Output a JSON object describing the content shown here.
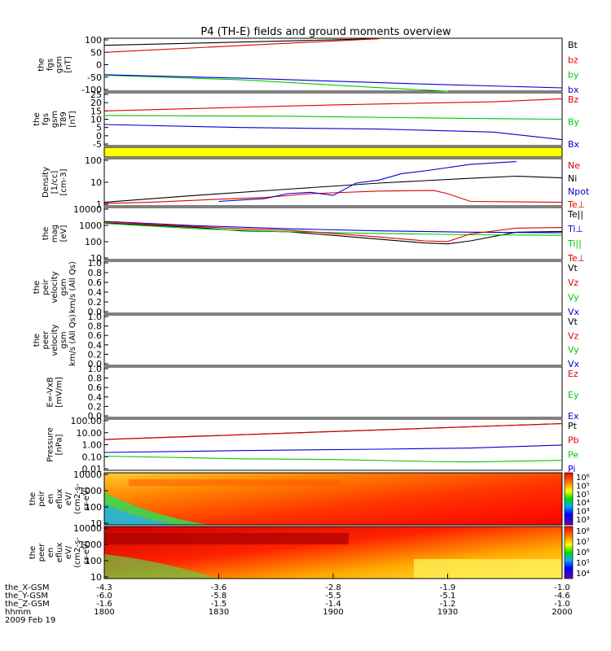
{
  "title": "P4 (TH-E) fields and ground moments overview",
  "time_axis": {
    "rows": [
      {
        "label": "the_X-GSM",
        "values": [
          "-4.3",
          "-3.6",
          "-2.8",
          "-1.9",
          "-1.0"
        ]
      },
      {
        "label": "the_Y-GSM",
        "values": [
          "-6.0",
          "-5.8",
          "-5.5",
          "-5.1",
          "-4.6"
        ]
      },
      {
        "label": "the_Z-GSM",
        "values": [
          "-1.6",
          "-1.5",
          "-1.4",
          "-1.2",
          "-1.0"
        ]
      },
      {
        "label": "hhmm",
        "values": [
          "1800",
          "1830",
          "1900",
          "1930",
          "2000"
        ]
      }
    ],
    "date": "2009 Feb 19"
  },
  "colors": {
    "black": "#000000",
    "red": "#e00000",
    "green": "#00c800",
    "blue": "#0000d0",
    "yellow": "#ffff00"
  },
  "chart_data": [
    {
      "type": "line",
      "id": "fgs",
      "ylabel": [
        "the",
        "fgs",
        "gsm",
        "[nT]"
      ],
      "yticks": [
        "100",
        "50",
        "0",
        "-50",
        "-100"
      ],
      "ylim": [
        -110,
        115
      ],
      "x": [
        0,
        1
      ],
      "series": [
        {
          "name": "Bt",
          "color": "#000000",
          "x": [
            0,
            0.6
          ],
          "y": [
            85,
            113
          ]
        },
        {
          "name": "bz",
          "color": "#e00000",
          "x": [
            0,
            0.6
          ],
          "y": [
            55,
            113
          ]
        },
        {
          "name": "by",
          "color": "#00c800",
          "x": [
            0,
            0.3,
            0.6,
            0.75
          ],
          "y": [
            -42,
            -62,
            -95,
            -112
          ]
        },
        {
          "name": "bx",
          "color": "#0000d0",
          "x": [
            0,
            0.3,
            0.7,
            1.0
          ],
          "y": [
            -40,
            -55,
            -80,
            -96
          ]
        }
      ]
    },
    {
      "type": "line",
      "id": "t89",
      "ylabel": [
        "the",
        "fgs",
        "gsm",
        "T89",
        "[nT]"
      ],
      "yticks": [
        "25",
        "20",
        "15",
        "10",
        "5",
        "0",
        "-5"
      ],
      "ylim": [
        -8,
        27
      ],
      "series": [
        {
          "name": "Bz",
          "color": "#e00000",
          "x": [
            0,
            0.5,
            0.85,
            1.0
          ],
          "y": [
            15,
            19,
            21,
            23
          ]
        },
        {
          "name": "By",
          "color": "#00c800",
          "x": [
            0,
            0.4,
            0.8,
            1.0
          ],
          "y": [
            12,
            11.5,
            10,
            9.5
          ]
        },
        {
          "name": "Bx",
          "color": "#0000d0",
          "x": [
            0,
            0.3,
            0.6,
            0.85,
            1.0
          ],
          "y": [
            6,
            4,
            3,
            1,
            -4
          ]
        }
      ]
    },
    {
      "type": "bar",
      "id": "mode-bar",
      "color": "#ffff00"
    },
    {
      "type": "line",
      "id": "density",
      "log": true,
      "ylabel": [
        "Density",
        "[1/cc]",
        "[cm-3]"
      ],
      "yticks": [
        "100",
        "10",
        "1"
      ],
      "ylim": [
        0.5,
        250
      ],
      "series": [
        {
          "name": "Ne",
          "color": "#e00000",
          "x": [
            0,
            0.1,
            0.25,
            0.35,
            0.45,
            0.6,
            0.72,
            0.75,
            0.8,
            1.0
          ],
          "y": [
            0.7,
            0.8,
            1.2,
            1.5,
            2.5,
            3.5,
            3.8,
            2.5,
            0.9,
            0.8
          ]
        },
        {
          "name": "Ni",
          "color": "#000000",
          "x": [
            0,
            0.2,
            0.4,
            0.6,
            0.8,
            0.9,
            1.0
          ],
          "y": [
            0.8,
            2,
            4.5,
            10,
            19,
            25,
            20
          ]
        },
        {
          "name": "Npot",
          "color": "#0000d0",
          "x": [
            0.25,
            0.35,
            0.4,
            0.45,
            0.5,
            0.55,
            0.6,
            0.65,
            0.7,
            0.8,
            0.9
          ],
          "y": [
            0.9,
            1.3,
            2.5,
            3,
            2,
            10,
            15,
            35,
            50,
            120,
            170
          ]
        },
        {
          "name": "Te⊥",
          "color": "#e00000",
          "legend_only": true
        }
      ]
    },
    {
      "type": "line",
      "id": "temp",
      "log": true,
      "ylabel": [
        "the",
        "mag",
        "[eV]"
      ],
      "yticks": [
        "10000",
        "1000",
        "100",
        "10"
      ],
      "ylim": [
        10,
        10000
      ],
      "series": [
        {
          "name": "Te||",
          "color": "#000000",
          "x": [
            0,
            0.2,
            0.3,
            0.4,
            0.5,
            0.6,
            0.7,
            0.75,
            0.8,
            0.9,
            1.0
          ],
          "y": [
            1300,
            700,
            450,
            400,
            250,
            150,
            90,
            80,
            120,
            380,
            420
          ]
        },
        {
          "name": "Ti⊥",
          "color": "#0000d0",
          "x": [
            0,
            0.2,
            0.4,
            0.6,
            0.8,
            1.0
          ],
          "y": [
            1600,
            900,
            600,
            450,
            380,
            350
          ]
        },
        {
          "name": "Ti||",
          "color": "#00c800",
          "x": [
            0,
            0.2,
            0.4,
            0.6,
            0.8,
            1.0
          ],
          "y": [
            1200,
            600,
            400,
            320,
            270,
            250
          ]
        },
        {
          "name": "Te⊥",
          "color": "#e00000",
          "x": [
            0,
            0.2,
            0.3,
            0.4,
            0.5,
            0.6,
            0.7,
            0.75,
            0.8,
            0.9,
            1.0
          ],
          "y": [
            1500,
            800,
            600,
            500,
            320,
            200,
            120,
            110,
            300,
            650,
            700
          ]
        }
      ]
    },
    {
      "type": "line",
      "id": "peir-vel",
      "ylabel": [
        "the",
        "peir",
        "velocity",
        "gsm",
        "km/s (All Qs)"
      ],
      "yticks": [
        "1.0",
        "0.8",
        "0.6",
        "0.4",
        "0.2",
        "0.0"
      ],
      "ylim": [
        0,
        1
      ],
      "series": [
        {
          "name": "Vt",
          "color": "#000000"
        },
        {
          "name": "Vz",
          "color": "#e00000"
        },
        {
          "name": "Vy",
          "color": "#00c800"
        },
        {
          "name": "Vx",
          "color": "#0000d0"
        }
      ]
    },
    {
      "type": "line",
      "id": "peer-vel",
      "ylabel": [
        "the",
        "peer",
        "velocity",
        "gsm",
        "km/s (All Qs)"
      ],
      "yticks": [
        "1.0",
        "0.8",
        "0.6",
        "0.4",
        "0.2",
        "0.0"
      ],
      "ylim": [
        0,
        1
      ],
      "series": [
        {
          "name": "Vt",
          "color": "#000000"
        },
        {
          "name": "Vz",
          "color": "#e00000"
        },
        {
          "name": "Vy",
          "color": "#00c800"
        },
        {
          "name": "Vx",
          "color": "#0000d0"
        }
      ]
    },
    {
      "type": "line",
      "id": "efield",
      "ylabel": [
        "E=-VxB",
        "[mV/m]"
      ],
      "yticks": [
        "1.0",
        "0.8",
        "0.6",
        "0.4",
        "0.2",
        "0.0"
      ],
      "ylim": [
        0,
        1
      ],
      "series": [
        {
          "name": "Ez",
          "color": "#e00000"
        },
        {
          "name": "Ey",
          "color": "#00c800"
        },
        {
          "name": "Ex",
          "color": "#0000d0"
        }
      ]
    },
    {
      "type": "line",
      "id": "pressure",
      "log": true,
      "ylabel": [
        "Pressure",
        "[nPa]"
      ],
      "yticks": [
        "100.00",
        "10.00",
        "1.00",
        "0.10",
        "0.01"
      ],
      "ylim": [
        0.01,
        100
      ],
      "series": [
        {
          "name": "Pt",
          "color": "#000000",
          "x": [
            0,
            1
          ],
          "y": [
            2.6,
            45
          ]
        },
        {
          "name": "Pb",
          "color": "#e00000",
          "x": [
            0,
            1
          ],
          "y": [
            2.5,
            44
          ]
        },
        {
          "name": "Pe",
          "color": "#00c800",
          "x": [
            0,
            0.3,
            0.5,
            0.7,
            0.8,
            1.0
          ],
          "y": [
            0.13,
            0.08,
            0.07,
            0.05,
            0.045,
            0.06
          ]
        },
        {
          "name": "Pi",
          "color": "#0000d0",
          "x": [
            0,
            0.3,
            0.6,
            0.8,
            1.0
          ],
          "y": [
            0.25,
            0.35,
            0.45,
            0.55,
            0.95
          ]
        }
      ]
    },
    {
      "type": "heatmap",
      "id": "peir-spec",
      "ylabel": [
        "the",
        "peir",
        "en",
        "eflux",
        "eV/",
        "(cm2-s-",
        "sr-eV)"
      ],
      "yticks": [
        "10000",
        "1000",
        "100",
        "10"
      ],
      "ylim": [
        5,
        30000
      ],
      "colorbar": [
        "10⁶",
        "10⁵",
        "10⁵",
        "10⁴",
        "10³",
        "10³"
      ]
    },
    {
      "type": "heatmap",
      "id": "peer-spec",
      "ylabel": [
        "the",
        "peer",
        "en",
        "eflux",
        "eV/",
        "(cm2-s-",
        "sr-eV)"
      ],
      "yticks": [
        "10000",
        "1000",
        "100",
        "10"
      ],
      "ylim": [
        5,
        30000
      ],
      "colorbar": [
        "10⁸",
        "10⁷",
        "10⁶",
        "10⁵",
        "10⁴"
      ]
    }
  ]
}
